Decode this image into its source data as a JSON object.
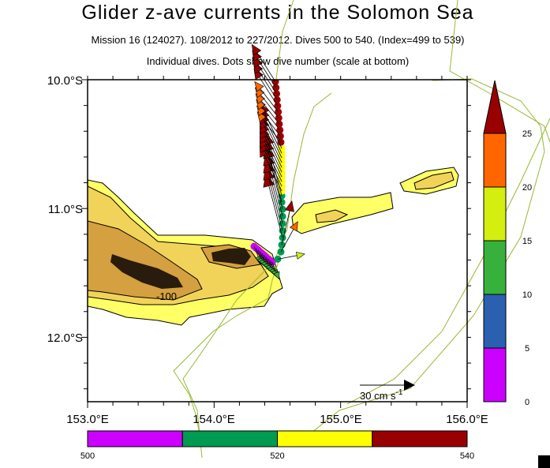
{
  "title": "Glider z-ave currents in the Solomon Sea",
  "subtitle1": "Mission 16 (124027). 108/2012 to 227/2012. Dives 500 to 540. (Index=499 to 539)",
  "subtitle2": "Individual dives. Dots show dive number (scale at bottom)",
  "axes": {
    "lon_range": [
      153.0,
      156.0
    ],
    "lat_range": [
      -10.0,
      -12.5
    ],
    "lon_labels": [
      "153.0°E",
      "154.0°E",
      "155.0°E",
      "156.0°E"
    ],
    "lat_labels": [
      "10.0°S",
      "11.0°S",
      "12.0°S"
    ]
  },
  "contour_label": "-100",
  "scale_arrow": {
    "value": 30,
    "label": "30 cm s",
    "exponent": "-1"
  },
  "speed_colorbar": {
    "unit": "cm/s",
    "bounds": [
      0,
      5,
      10,
      15,
      20,
      25
    ],
    "labels": [
      "0",
      "5",
      "10",
      "15",
      "20",
      "25"
    ],
    "colors": [
      "#cc00ff",
      "#2b5fb0",
      "#38b03c",
      "#d4ee10",
      "#ff6600",
      "#990000"
    ]
  },
  "dive_colorbar": {
    "bounds": [
      500,
      510,
      520,
      530,
      540
    ],
    "labels": [
      "500",
      "520",
      "540"
    ],
    "colors": [
      "#cc00ff",
      "#009a50",
      "#ffff00",
      "#990000"
    ]
  },
  "colors": {
    "coastline": "#99b833",
    "land_1": "#ffff66",
    "land_2": "#f2d35a",
    "land_3": "#d4a040",
    "land_4": "#2a1c0c"
  },
  "chart_data": {
    "type": "scatter",
    "title": "Glider z-ave currents in the Solomon Sea",
    "fields": [
      "dive",
      "lat",
      "lon",
      "u_cm_s",
      "v_cm_s"
    ],
    "dives": [
      [
        500,
        -11.294,
        154.316,
        4,
        -10
      ],
      [
        501,
        -11.308,
        154.332,
        4,
        -10
      ],
      [
        502,
        -11.321,
        154.348,
        4,
        -10
      ],
      [
        503,
        -11.335,
        154.364,
        4,
        -10
      ],
      [
        504,
        -11.349,
        154.38,
        4,
        -10
      ],
      [
        505,
        -11.362,
        154.396,
        4,
        -10
      ],
      [
        506,
        -11.376,
        154.412,
        4,
        -10
      ],
      [
        507,
        -11.39,
        154.428,
        4,
        -10
      ],
      [
        508,
        -11.403,
        154.444,
        4,
        -10
      ],
      [
        509,
        -11.417,
        154.46,
        4,
        -10
      ],
      [
        510,
        -11.393,
        154.503,
        16,
        3
      ],
      [
        511,
        -11.337,
        154.528,
        10,
        18
      ],
      [
        512,
        -11.282,
        154.535,
        6,
        26
      ],
      [
        513,
        -11.227,
        154.541,
        -10,
        38
      ],
      [
        514,
        -11.172,
        154.541,
        -10,
        38
      ],
      [
        515,
        -11.117,
        154.541,
        -10,
        38
      ],
      [
        516,
        -11.061,
        154.541,
        -10,
        38
      ],
      [
        517,
        -11.006,
        154.541,
        -10,
        38
      ],
      [
        518,
        -10.951,
        154.535,
        -10,
        38
      ],
      [
        519,
        -10.902,
        154.535,
        -10,
        38
      ],
      [
        520,
        -10.865,
        154.535,
        -13,
        27
      ],
      [
        521,
        -10.828,
        154.535,
        -13,
        27
      ],
      [
        522,
        -10.791,
        154.535,
        -13,
        27
      ],
      [
        523,
        -10.755,
        154.535,
        -13,
        27
      ],
      [
        524,
        -10.718,
        154.535,
        -13,
        27
      ],
      [
        525,
        -10.681,
        154.535,
        -13,
        27
      ],
      [
        526,
        -10.644,
        154.535,
        -13,
        27
      ],
      [
        527,
        -10.607,
        154.535,
        -13,
        27
      ],
      [
        528,
        -10.571,
        154.535,
        -13,
        27
      ],
      [
        529,
        -10.534,
        154.535,
        -13,
        27
      ],
      [
        530,
        -10.485,
        154.528,
        -14,
        18
      ],
      [
        531,
        -10.438,
        154.524,
        -14,
        18
      ],
      [
        532,
        -10.391,
        154.52,
        -14,
        18
      ],
      [
        533,
        -10.344,
        154.515,
        -14,
        18
      ],
      [
        534,
        -10.297,
        154.511,
        -14,
        18
      ],
      [
        535,
        -10.25,
        154.507,
        -14,
        18
      ],
      [
        536,
        -10.203,
        154.502,
        -14,
        22
      ],
      [
        537,
        -10.156,
        154.498,
        -14,
        22
      ],
      [
        538,
        -10.109,
        154.494,
        -14,
        22
      ],
      [
        539,
        -10.062,
        154.489,
        -14,
        22
      ],
      [
        540,
        -10.015,
        154.485,
        -14,
        22
      ]
    ]
  }
}
